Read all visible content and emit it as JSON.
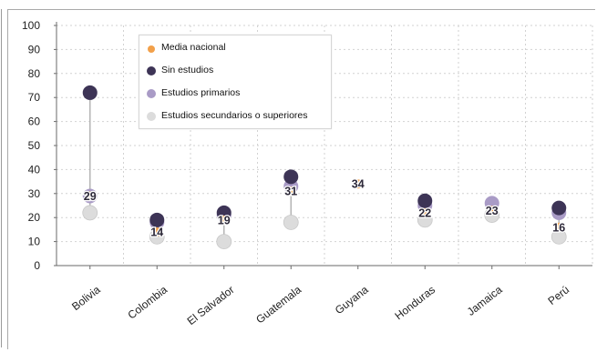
{
  "chart_data": {
    "type": "scatter",
    "title": "",
    "xlabel": "",
    "ylabel": "",
    "ylim": [
      0,
      100
    ],
    "yticks": [
      0,
      10,
      20,
      30,
      40,
      50,
      60,
      70,
      80,
      90,
      100
    ],
    "grid": true,
    "legend_position": "top-left",
    "categories": [
      "Bolivia",
      "Colombia",
      "El Salvador",
      "Guatemala",
      "Guyana",
      "Honduras",
      "Jamaica",
      "Perú"
    ],
    "series": [
      {
        "name": "Media nacional",
        "color": "#f2a04a",
        "values": [
          29,
          14,
          19,
          31,
          34,
          22,
          23,
          16
        ]
      },
      {
        "name": "Sin estudios",
        "color": "#3d3456",
        "values": [
          72,
          19,
          22,
          37,
          null,
          27,
          null,
          24
        ]
      },
      {
        "name": "Estudios primarios",
        "color": "#a99bc6",
        "values": [
          29,
          18,
          21,
          33,
          null,
          25,
          26,
          22
        ]
      },
      {
        "name": "Estudios secundarios o superiores",
        "color": "#dcdcdc",
        "values": [
          22,
          12,
          10,
          18,
          null,
          19,
          21,
          12
        ]
      }
    ],
    "data_labels": [
      "29",
      "14",
      "19",
      "31",
      "34",
      "22",
      "23",
      "16"
    ]
  }
}
